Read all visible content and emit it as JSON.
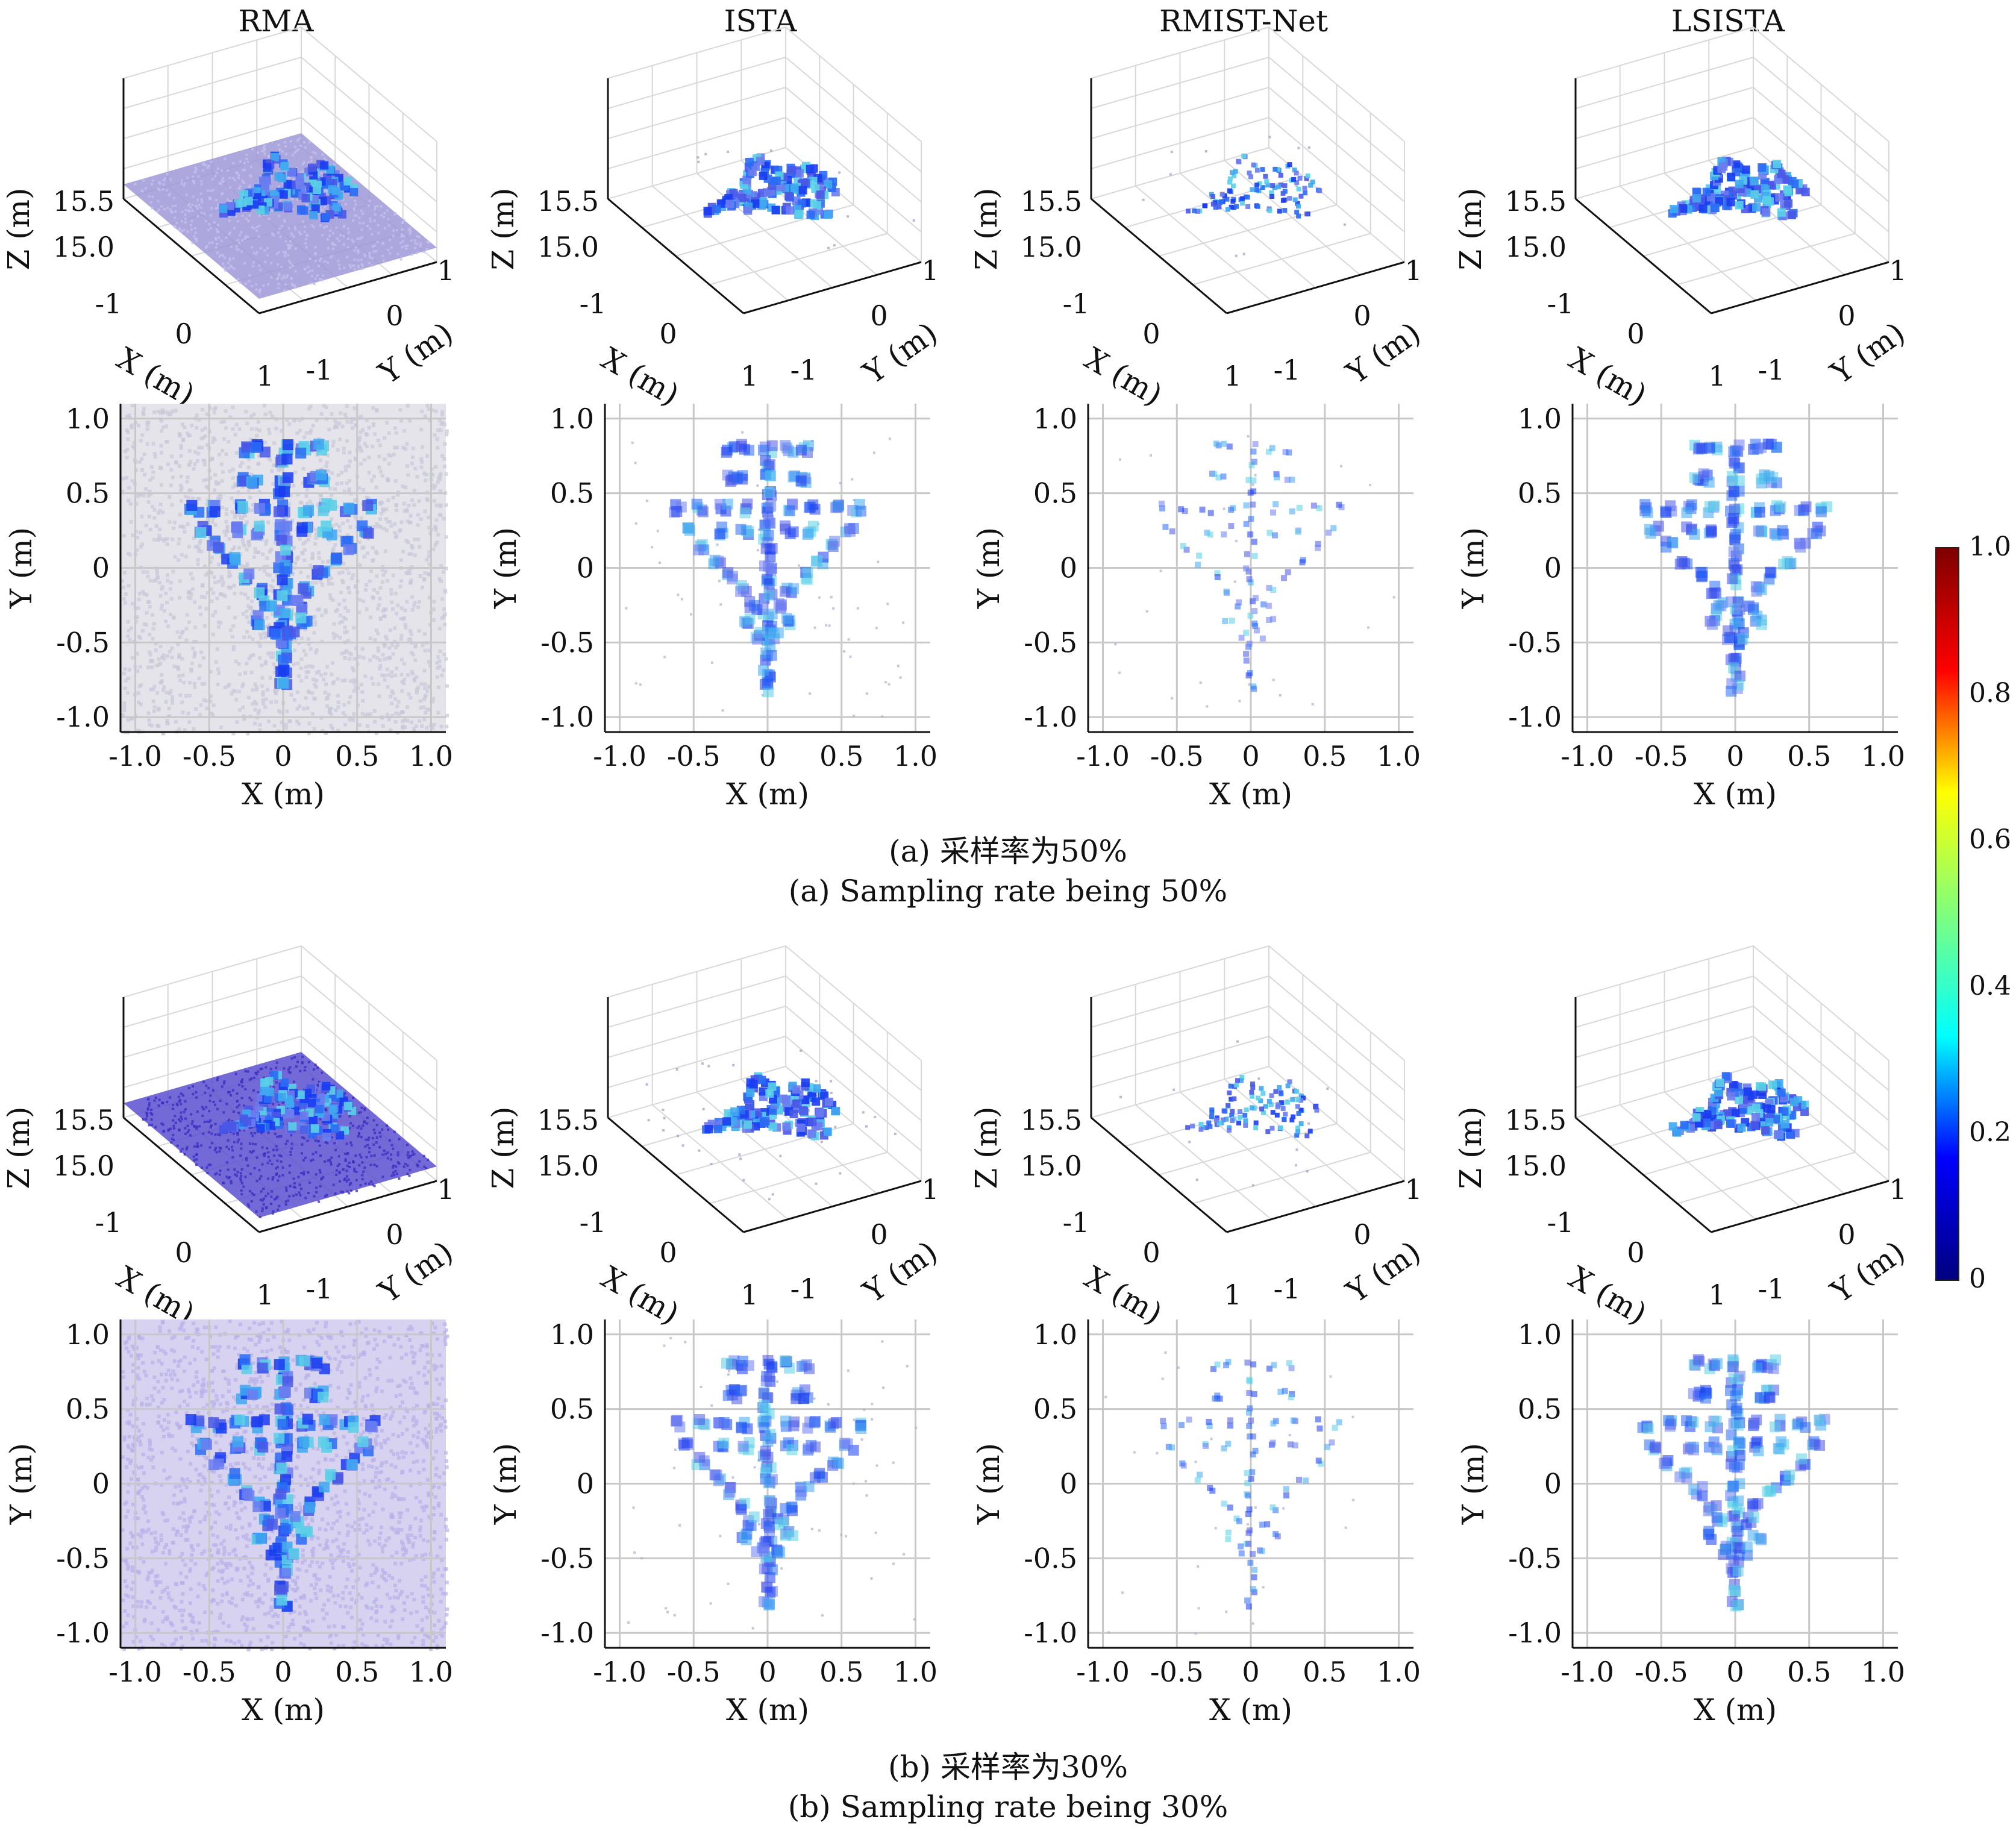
{
  "figure": {
    "column_titles": [
      "RMA",
      "ISTA",
      "RMIST-Net",
      "LSISTA"
    ],
    "caption_a_cn": "(a) 采样率为50%",
    "caption_a_en": "(a) Sampling rate being 50%",
    "caption_b_cn": "(b) 采样率为30%",
    "caption_b_en": "(b) Sampling rate being 30%"
  },
  "axes3d": {
    "z_label": "Z (m)",
    "x_label": "X (m)",
    "y_label": "Y (m)",
    "z_ticks": [
      "15.5",
      "15.0"
    ],
    "x_ticks": [
      "-1",
      "0",
      "1"
    ],
    "y_ticks": [
      "-1",
      "0",
      "1"
    ]
  },
  "axes2d": {
    "x_label": "X (m)",
    "y_label": "Y (m)",
    "ticks": [
      "-1.0",
      "-0.5",
      "0",
      "0.5",
      "1.0"
    ]
  },
  "colorbar": {
    "ticks": [
      "1.0",
      "0.8",
      "0.6",
      "0.4",
      "0.2",
      "0"
    ],
    "colormap": "jet",
    "colors": [
      "#00007f",
      "#0000ff",
      "#00ffff",
      "#7fff7f",
      "#ffff00",
      "#ff0000",
      "#7f0000"
    ]
  },
  "chart_data": [
    {
      "type": "scatter",
      "description_key": "3D reconstruction views (Z ≈ 15–15.5 m) for each method at sampling rates 50% and 30%",
      "methods": [
        "RMA",
        "ISTA",
        "RMIST-Net",
        "LSISTA"
      ],
      "sampling_rates": [
        "50%",
        "30%"
      ],
      "xlim": [
        -1,
        1
      ],
      "ylim": [
        -1,
        1
      ],
      "zlim": [
        15.0,
        15.5
      ],
      "background_noise": {
        "RMA": "dense",
        "ISTA": "sparse",
        "RMIST-Net": "very sparse",
        "LSISTA": "none"
      }
    },
    {
      "type": "scatter",
      "description_key": "2D X–Y projection of the aircraft target for each method",
      "xlim": [
        -1.0,
        1.0
      ],
      "ylim": [
        -1.0,
        1.0
      ],
      "grid": true,
      "target_points": {
        "fuselage": [
          [
            0,
            0.8
          ],
          [
            0,
            0.7
          ],
          [
            0,
            0.6
          ],
          [
            0,
            0.5
          ],
          [
            0,
            0.4
          ],
          [
            0,
            0.3
          ],
          [
            0,
            0.2
          ],
          [
            0,
            0.1
          ],
          [
            0,
            0
          ],
          [
            0,
            -0.1
          ],
          [
            0,
            -0.2
          ],
          [
            0,
            -0.3
          ],
          [
            0,
            -0.4
          ],
          [
            0,
            -0.5
          ],
          [
            0,
            -0.6
          ],
          [
            0,
            -0.7
          ],
          [
            0,
            -0.8
          ]
        ],
        "canards": [
          [
            -0.25,
            0.8
          ],
          [
            -0.15,
            0.8
          ],
          [
            0.15,
            0.8
          ],
          [
            0.25,
            0.8
          ],
          [
            -0.25,
            0.6
          ],
          [
            -0.2,
            0.6
          ],
          [
            0.2,
            0.6
          ],
          [
            0.25,
            0.6
          ]
        ],
        "wing_leading": [
          [
            -0.6,
            0.4
          ],
          [
            -0.45,
            0.4
          ],
          [
            -0.3,
            0.4
          ],
          [
            -0.15,
            0.4
          ],
          [
            0.15,
            0.4
          ],
          [
            0.3,
            0.4
          ],
          [
            0.45,
            0.4
          ],
          [
            0.6,
            0.4
          ]
        ],
        "wing_mid": [
          [
            -0.3,
            0.25
          ],
          [
            -0.15,
            0.25
          ],
          [
            0.15,
            0.25
          ],
          [
            0.3,
            0.25
          ]
        ],
        "wing_diagonal": [
          [
            -0.55,
            0.25
          ],
          [
            -0.45,
            0.15
          ],
          [
            -0.35,
            0.05
          ],
          [
            -0.25,
            -0.05
          ],
          [
            -0.15,
            -0.15
          ],
          [
            0.15,
            -0.15
          ],
          [
            0.25,
            -0.05
          ],
          [
            0.35,
            0.05
          ],
          [
            0.45,
            0.15
          ],
          [
            0.55,
            0.25
          ]
        ],
        "tail": [
          [
            -0.1,
            -0.25
          ],
          [
            0.1,
            -0.25
          ],
          [
            -0.15,
            -0.35
          ],
          [
            0.15,
            -0.35
          ],
          [
            -0.05,
            -0.45
          ],
          [
            0.05,
            -0.45
          ]
        ]
      }
    }
  ]
}
